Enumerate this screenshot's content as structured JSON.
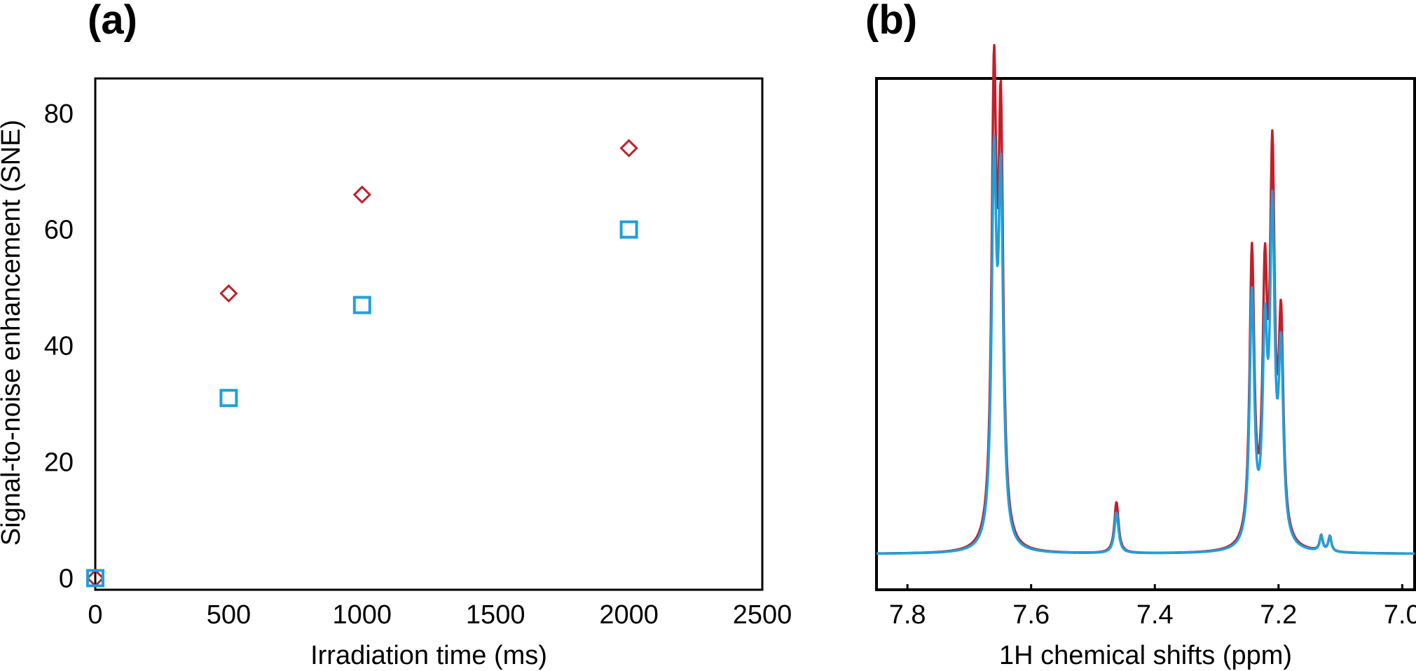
{
  "chart_data": [
    {
      "panel": "(a)",
      "type": "scatter",
      "title": "",
      "xlabel": "Irradiation time (ms)",
      "ylabel": "Signal-to-noise enhancement (SNE)",
      "xlim": [
        0,
        2500
      ],
      "ylim": [
        -2,
        86
      ],
      "xticks": [
        0,
        500,
        1000,
        1500,
        2000,
        2500
      ],
      "yticks": [
        0,
        20,
        40,
        60,
        80
      ],
      "series": [
        {
          "name": "diamond series",
          "marker": "diamond",
          "color": "#c0202a",
          "x": [
            0,
            500,
            1000,
            2000
          ],
          "y": [
            0,
            49,
            66,
            74
          ]
        },
        {
          "name": "square series",
          "marker": "square",
          "color": "#1ea0dc",
          "x": [
            0,
            500,
            1000,
            2000
          ],
          "y": [
            0,
            31,
            47,
            60
          ]
        }
      ]
    },
    {
      "panel": "(b)",
      "type": "line",
      "title": "",
      "xlabel": "1H chemical shifts (ppm)",
      "ylabel": "",
      "xlim": [
        7.85,
        6.98
      ],
      "ylim": [
        0,
        100
      ],
      "xticks": [
        7.8,
        7.6,
        7.4,
        7.2,
        7.0
      ],
      "xtick_labels": [
        "7.8",
        "7.6",
        "7.4",
        "7.2",
        "7.0"
      ],
      "baseline": 7,
      "series": [
        {
          "name": "red spectrum",
          "color": "#c0202a",
          "peaks": [
            {
              "ppm": 7.66,
              "height": 88,
              "width": 0.0045
            },
            {
              "ppm": 7.649,
              "height": 80,
              "width": 0.0045
            },
            {
              "ppm": 7.462,
              "height": 10,
              "width": 0.004
            },
            {
              "ppm": 7.243,
              "height": 57,
              "width": 0.0045
            },
            {
              "ppm": 7.222,
              "height": 48,
              "width": 0.0045
            },
            {
              "ppm": 7.21,
              "height": 72,
              "width": 0.0045
            },
            {
              "ppm": 7.196,
              "height": 41,
              "width": 0.0045
            },
            {
              "ppm": 7.131,
              "height": 3,
              "width": 0.003
            },
            {
              "ppm": 7.117,
              "height": 3,
              "width": 0.003
            }
          ]
        },
        {
          "name": "blue spectrum",
          "color": "#1ea0dc",
          "peaks": [
            {
              "ppm": 7.66,
              "height": 72,
              "width": 0.0045
            },
            {
              "ppm": 7.649,
              "height": 68,
              "width": 0.0045
            },
            {
              "ppm": 7.462,
              "height": 8,
              "width": 0.004
            },
            {
              "ppm": 7.243,
              "height": 49,
              "width": 0.0045
            },
            {
              "ppm": 7.222,
              "height": 38,
              "width": 0.0045
            },
            {
              "ppm": 7.21,
              "height": 62,
              "width": 0.0045
            },
            {
              "ppm": 7.196,
              "height": 36,
              "width": 0.0045
            },
            {
              "ppm": 7.131,
              "height": 3,
              "width": 0.003
            },
            {
              "ppm": 7.117,
              "height": 3,
              "width": 0.003
            }
          ]
        }
      ]
    }
  ]
}
